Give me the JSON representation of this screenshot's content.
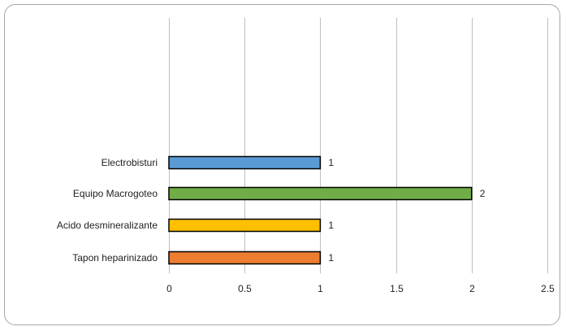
{
  "chart_data": {
    "type": "bar",
    "orientation": "horizontal",
    "title": "",
    "xlabel": "",
    "ylabel": "",
    "categories": [
      "Electrobisturi",
      "Equipo Macrogoteo",
      "Acido desmineralizante",
      "Tapon heparinizado"
    ],
    "values": [
      1,
      2,
      1,
      1
    ],
    "colors": [
      "#5b9bd5",
      "#70ad47",
      "#ffc000",
      "#ed7d31"
    ],
    "data_labels": [
      "1",
      "2",
      "1",
      "1"
    ],
    "xlim": [
      0,
      2.5
    ],
    "xticks": [
      0,
      0.5,
      1,
      1.5,
      2,
      2.5
    ],
    "xtick_labels": [
      "0",
      "0.5",
      "1",
      "1.5",
      "2",
      "2.5"
    ],
    "grid": "vertical",
    "legend": "none"
  }
}
